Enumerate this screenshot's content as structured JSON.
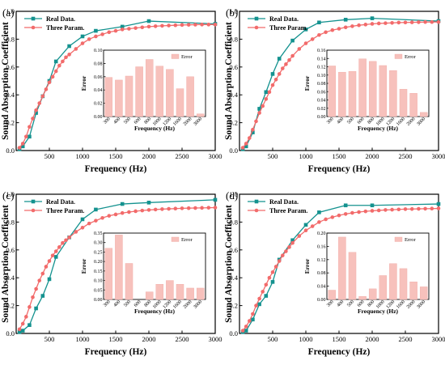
{
  "colors": {
    "real": "#14928f",
    "three": "#f26b6b",
    "bar": "#f7c1bc",
    "barEdge": "#f0a9a3"
  },
  "chart_data": [
    {
      "panel": "(a)",
      "type": "line",
      "xlabel": "Frequency (Hz)",
      "ylabel": "Sound Absorption Coefficient",
      "xlim": [
        0,
        3000
      ],
      "ylim": [
        0,
        1.0
      ],
      "xticks": [
        500,
        1000,
        1500,
        2000,
        2500,
        3000
      ],
      "yticks": [
        0.0,
        0.2,
        0.4,
        0.6,
        0.8,
        1.0
      ],
      "legend": "top-left",
      "series": [
        {
          "name": "Real Data.",
          "x": [
            50,
            100,
            200,
            300,
            400,
            500,
            600,
            800,
            1000,
            1200,
            1600,
            2000,
            3000
          ],
          "y": [
            0.01,
            0.03,
            0.1,
            0.27,
            0.39,
            0.5,
            0.64,
            0.75,
            0.82,
            0.86,
            0.89,
            0.93,
            0.91
          ]
        },
        {
          "name": "Three Param.",
          "x": [
            50,
            100,
            150,
            200,
            250,
            300,
            350,
            400,
            450,
            500,
            550,
            600,
            650,
            700,
            750,
            800,
            900,
            1000,
            1100,
            1200,
            1300,
            1400,
            1500,
            1600,
            1700,
            1800,
            1900,
            2000,
            2100,
            2200,
            2300,
            2400,
            2500,
            2600,
            2700,
            2800,
            2900,
            3000
          ],
          "y": [
            0.02,
            0.05,
            0.1,
            0.17,
            0.23,
            0.29,
            0.34,
            0.39,
            0.44,
            0.49,
            0.53,
            0.57,
            0.61,
            0.64,
            0.67,
            0.69,
            0.73,
            0.77,
            0.8,
            0.82,
            0.835,
            0.85,
            0.86,
            0.87,
            0.875,
            0.88,
            0.885,
            0.89,
            0.893,
            0.896,
            0.898,
            0.9,
            0.902,
            0.903,
            0.904,
            0.905,
            0.905,
            0.905
          ]
        }
      ],
      "inset": {
        "type": "bar",
        "ylabel": "Error",
        "xlabel": "Frequency (Hz)",
        "legend": "Error",
        "ylim": [
          0,
          0.1
        ],
        "yticks": [
          0.0,
          0.02,
          0.04,
          0.06,
          0.08,
          0.1
        ],
        "ydec": 2,
        "categories": [
          "300",
          "400",
          "500",
          "600",
          "800",
          "1000",
          "1200",
          "1600",
          "2000",
          "3000"
        ],
        "values": [
          0.059,
          0.055,
          0.061,
          0.075,
          0.086,
          0.076,
          0.071,
          0.042,
          0.06,
          0.004
        ]
      }
    },
    {
      "panel": "(b)",
      "type": "line",
      "xlabel": "Frequency (Hz)",
      "ylabel": "Sound Absorption Coefficient",
      "xlim": [
        0,
        3000
      ],
      "ylim": [
        0,
        1.0
      ],
      "xticks": [
        500,
        1000,
        1500,
        2000,
        2500,
        3000
      ],
      "yticks": [
        0.0,
        0.2,
        0.4,
        0.6,
        0.8,
        1.0
      ],
      "legend": "top-left",
      "series": [
        {
          "name": "Real Data.",
          "x": [
            50,
            100,
            200,
            300,
            400,
            500,
            600,
            800,
            1000,
            1200,
            1600,
            2000,
            3000
          ],
          "y": [
            0.01,
            0.03,
            0.13,
            0.3,
            0.42,
            0.55,
            0.66,
            0.79,
            0.87,
            0.92,
            0.94,
            0.95,
            0.93
          ]
        },
        {
          "name": "Three Param.",
          "x": [
            50,
            100,
            150,
            200,
            250,
            300,
            350,
            400,
            450,
            500,
            550,
            600,
            650,
            700,
            750,
            800,
            900,
            1000,
            1100,
            1200,
            1300,
            1400,
            1500,
            1600,
            1700,
            1800,
            1900,
            2000,
            2100,
            2200,
            2300,
            2400,
            2500,
            2600,
            2700,
            2800,
            2900,
            3000
          ],
          "y": [
            0.02,
            0.05,
            0.09,
            0.15,
            0.21,
            0.27,
            0.32,
            0.37,
            0.42,
            0.47,
            0.51,
            0.55,
            0.59,
            0.62,
            0.65,
            0.68,
            0.73,
            0.77,
            0.8,
            0.83,
            0.85,
            0.865,
            0.875,
            0.885,
            0.893,
            0.9,
            0.905,
            0.91,
            0.913,
            0.915,
            0.917,
            0.919,
            0.92,
            0.921,
            0.922,
            0.923,
            0.923,
            0.924
          ]
        }
      ],
      "inset": {
        "type": "bar",
        "ylabel": "Error",
        "xlabel": "Frequency (Hz)",
        "legend": "Error",
        "ylim": [
          0,
          0.16
        ],
        "yticks": [
          0.0,
          0.02,
          0.04,
          0.06,
          0.08,
          0.1,
          0.12,
          0.14,
          0.16
        ],
        "ydec": 2,
        "categories": [
          "300",
          "400",
          "500",
          "600",
          "800",
          "1000",
          "1200",
          "1600",
          "2000",
          "3000"
        ],
        "values": [
          0.122,
          0.107,
          0.109,
          0.139,
          0.133,
          0.123,
          0.111,
          0.066,
          0.056,
          0.01
        ]
      }
    },
    {
      "panel": "(c)",
      "type": "line",
      "xlabel": "Frequency (Hz)",
      "ylabel": "Sound Absorption Coefficient",
      "xlim": [
        0,
        3000
      ],
      "ylim": [
        0,
        1.0
      ],
      "xticks": [
        500,
        1000,
        1500,
        2000,
        2500,
        3000
      ],
      "yticks": [
        0.0,
        0.2,
        0.4,
        0.6,
        0.8,
        1.0
      ],
      "legend": "top-left",
      "series": [
        {
          "name": "Real Data.",
          "x": [
            50,
            100,
            200,
            300,
            400,
            500,
            600,
            800,
            1000,
            1200,
            1600,
            2000,
            3000
          ],
          "y": [
            0.01,
            0.02,
            0.06,
            0.18,
            0.27,
            0.39,
            0.55,
            0.69,
            0.82,
            0.89,
            0.93,
            0.94,
            0.96
          ]
        },
        {
          "name": "Three Param.",
          "x": [
            50,
            100,
            150,
            200,
            250,
            300,
            350,
            400,
            450,
            500,
            550,
            600,
            650,
            700,
            750,
            800,
            900,
            1000,
            1100,
            1200,
            1300,
            1400,
            1500,
            1600,
            1700,
            1800,
            1900,
            2000,
            2100,
            2200,
            2300,
            2400,
            2500,
            2600,
            2700,
            2800,
            2900,
            3000
          ],
          "y": [
            0.03,
            0.07,
            0.12,
            0.19,
            0.26,
            0.32,
            0.38,
            0.43,
            0.48,
            0.52,
            0.56,
            0.59,
            0.62,
            0.65,
            0.67,
            0.69,
            0.73,
            0.76,
            0.79,
            0.81,
            0.83,
            0.845,
            0.855,
            0.865,
            0.872,
            0.878,
            0.883,
            0.887,
            0.89,
            0.893,
            0.895,
            0.897,
            0.899,
            0.9,
            0.901,
            0.902,
            0.903,
            0.904
          ]
        }
      ],
      "inset": {
        "type": "bar",
        "ylabel": "Error",
        "xlabel": "Frequency (Hz)",
        "legend": "Error",
        "ylim": [
          0,
          0.35
        ],
        "yticks": [
          0.0,
          0.05,
          0.1,
          0.15,
          0.2,
          0.25,
          0.3,
          0.35
        ],
        "ydec": 2,
        "categories": [
          "300",
          "400",
          "500",
          "600",
          "800",
          "1000",
          "1200",
          "1600",
          "2000",
          "3000"
        ],
        "values": [
          0.27,
          0.34,
          0.19,
          0.0,
          0.04,
          0.08,
          0.1,
          0.08,
          0.06,
          0.06
        ]
      }
    },
    {
      "panel": "(d)",
      "type": "line",
      "xlabel": "Frequency (Hz)",
      "ylabel": "Sound Absorption Coefficient",
      "xlim": [
        0,
        3000
      ],
      "ylim": [
        0,
        1.0
      ],
      "xticks": [
        500,
        1000,
        1500,
        2000,
        2500,
        3000
      ],
      "yticks": [
        0.0,
        0.2,
        0.4,
        0.6,
        0.8,
        1.0
      ],
      "legend": "top-left",
      "series": [
        {
          "name": "Real Data.",
          "x": [
            50,
            100,
            200,
            300,
            400,
            500,
            600,
            800,
            1000,
            1200,
            1600,
            2000,
            3000
          ],
          "y": [
            0.01,
            0.02,
            0.1,
            0.21,
            0.27,
            0.37,
            0.53,
            0.67,
            0.78,
            0.87,
            0.92,
            0.92,
            0.93
          ]
        },
        {
          "name": "Three Param.",
          "x": [
            50,
            100,
            150,
            200,
            250,
            300,
            350,
            400,
            450,
            500,
            550,
            600,
            650,
            700,
            750,
            800,
            900,
            1000,
            1100,
            1200,
            1300,
            1400,
            1500,
            1600,
            1700,
            1800,
            1900,
            2000,
            2100,
            2200,
            2300,
            2400,
            2500,
            2600,
            2700,
            2800,
            2900,
            3000
          ],
          "y": [
            0.02,
            0.05,
            0.09,
            0.14,
            0.2,
            0.25,
            0.3,
            0.35,
            0.4,
            0.44,
            0.48,
            0.52,
            0.56,
            0.59,
            0.62,
            0.65,
            0.7,
            0.74,
            0.77,
            0.8,
            0.82,
            0.835,
            0.848,
            0.858,
            0.866,
            0.872,
            0.877,
            0.881,
            0.884,
            0.887,
            0.889,
            0.891,
            0.893,
            0.894,
            0.895,
            0.896,
            0.897,
            0.898
          ]
        }
      ],
      "inset": {
        "type": "bar",
        "ylabel": "Error",
        "xlabel": "Frequency (Hz)",
        "legend": "Error",
        "ylim": [
          0,
          0.2
        ],
        "yticks": [
          0.0,
          0.04,
          0.08,
          0.12,
          0.16,
          0.2
        ],
        "ydec": 2,
        "categories": [
          "300",
          "400",
          "500",
          "600",
          "800",
          "1000",
          "1200",
          "1600",
          "2000",
          "3000"
        ],
        "values": [
          0.028,
          0.188,
          0.142,
          0.009,
          0.032,
          0.072,
          0.108,
          0.093,
          0.053,
          0.038
        ]
      }
    }
  ]
}
